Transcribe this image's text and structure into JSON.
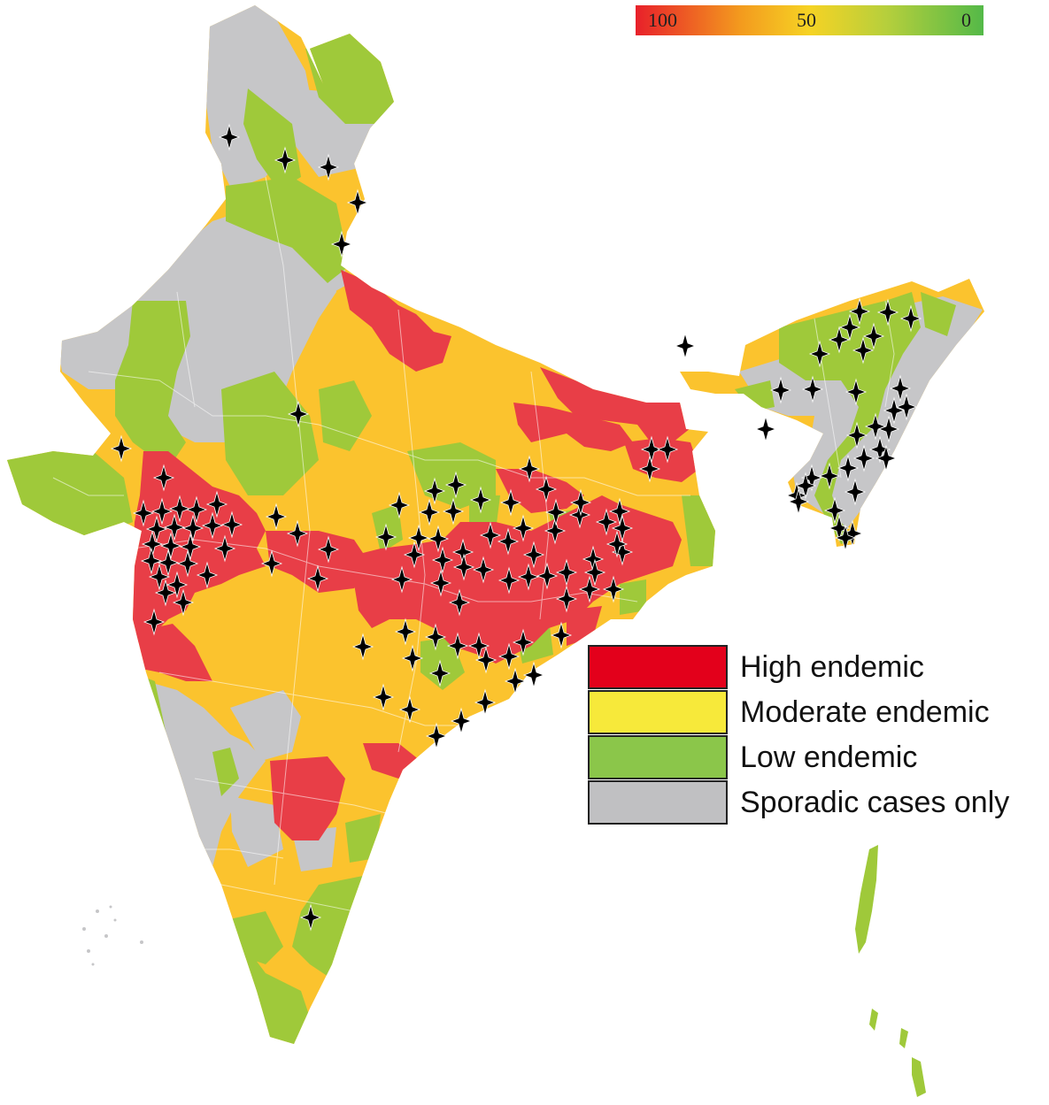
{
  "colors": {
    "high": "#e83e47",
    "moderate": "#fbc32e",
    "low": "#9fc93a",
    "sporadic": "#c6c6c8",
    "legend_high": "#e3001b",
    "legend_moderate": "#f7e93a",
    "legend_low": "#8bc64a",
    "legend_sporadic": "#c0c0c2",
    "border": "#ffffff",
    "marker": "#000000"
  },
  "scale": {
    "labels": [
      "100",
      "50",
      "0"
    ],
    "gradient_colors": [
      "#e8202a",
      "#f6d324",
      "#54b948"
    ]
  },
  "legend": {
    "items": [
      {
        "label": "High endemic",
        "color": "#e3001b"
      },
      {
        "label": "Moderate endemic",
        "color": "#f7e93a"
      },
      {
        "label": "Low endemic",
        "color": "#8bc64a"
      },
      {
        "label": "Sporadic cases only",
        "color": "#c0c0c2"
      }
    ]
  },
  "markers": {
    "icon": "four-point-star-icon",
    "count": 132
  }
}
